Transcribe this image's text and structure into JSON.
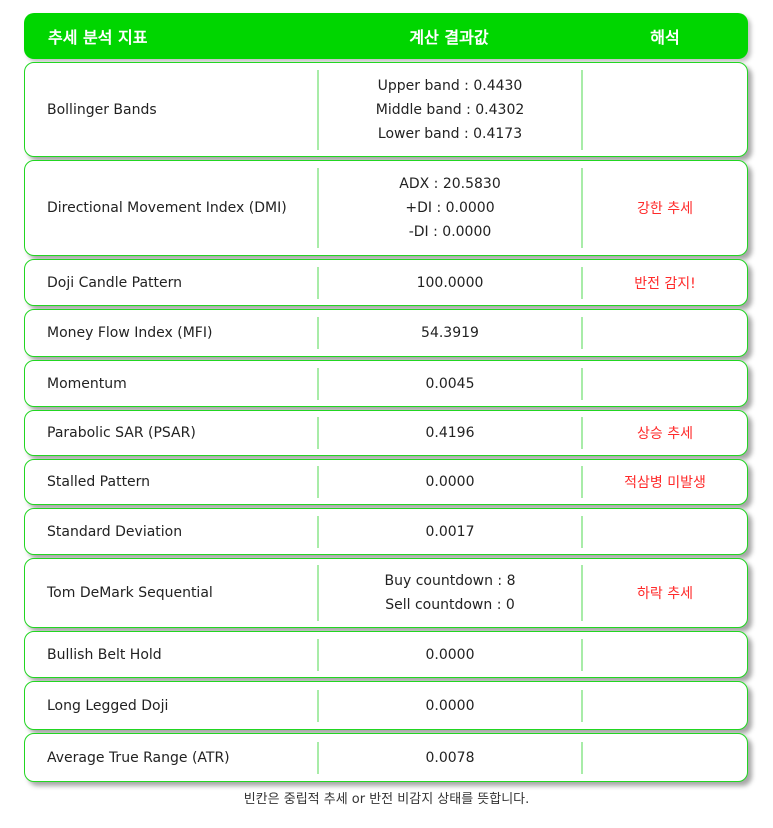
{
  "header": {
    "col1": "추세 분석 지표",
    "col2": "계산 결과값",
    "col3": "해석"
  },
  "rows": [
    {
      "name": "Bollinger Bands",
      "values": [
        "Upper band : 0.4430",
        "Middle band : 0.4302",
        "Lower band : 0.4173"
      ],
      "interp": ""
    },
    {
      "name": "Directional Movement Index (DMI)",
      "values": [
        "ADX : 20.5830",
        "+DI : 0.0000",
        "-DI : 0.0000"
      ],
      "interp": "강한 추세"
    },
    {
      "name": "Doji Candle Pattern",
      "values": [
        "100.0000"
      ],
      "interp": "반전 감지!"
    },
    {
      "name": "Money Flow Index (MFI)",
      "values": [
        "54.3919"
      ],
      "interp": ""
    },
    {
      "name": "Momentum",
      "values": [
        "0.0045"
      ],
      "interp": ""
    },
    {
      "name": "Parabolic SAR (PSAR)",
      "values": [
        "0.4196"
      ],
      "interp": "상승 추세"
    },
    {
      "name": "Stalled Pattern",
      "values": [
        "0.0000"
      ],
      "interp": "적삼병 미발생"
    },
    {
      "name": "Standard Deviation",
      "values": [
        "0.0017"
      ],
      "interp": ""
    },
    {
      "name": "Tom DeMark Sequential",
      "values": [
        "Buy countdown : 8",
        "Sell countdown : 0"
      ],
      "interp": "하락 추세"
    },
    {
      "name": "Bullish Belt Hold",
      "values": [
        "0.0000"
      ],
      "interp": ""
    },
    {
      "name": "Long Legged Doji",
      "values": [
        "0.0000"
      ],
      "interp": ""
    },
    {
      "name": "Average True Range (ATR)",
      "values": [
        "0.0078"
      ],
      "interp": ""
    }
  ],
  "footnote": "빈칸은 중립적 추세 or 반전 비감지 상태를 뜻합니다.",
  "colors": {
    "header": "#00d600",
    "border": "#22d622",
    "alert": "#ff2a2a"
  }
}
